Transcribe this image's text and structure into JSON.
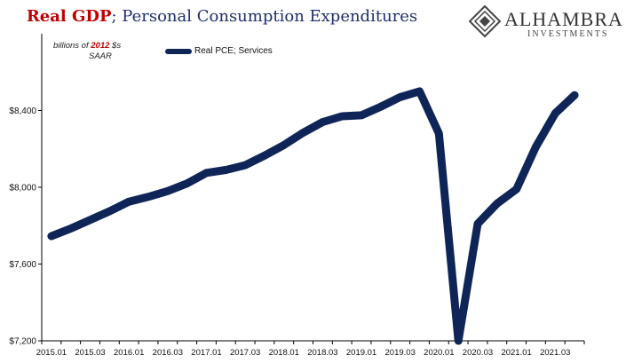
{
  "header": {
    "title_red": "Real GDP",
    "title_rest": "; Personal Consumption Expenditures"
  },
  "note": {
    "prefix": "billions of ",
    "year": "2012",
    "suffix": " $s",
    "line2": "SAAR"
  },
  "logo": {
    "name": "ALHAMBRA",
    "sub": "INVESTMENTS"
  },
  "colors": {
    "series": "#0f2557",
    "title_red": "#c00000",
    "title_blue": "#1f2d6b",
    "axis": "#000000"
  },
  "chart_data": {
    "type": "line",
    "ylim": [
      7200,
      8800
    ],
    "yticks": [
      7200,
      7600,
      8000,
      8400
    ],
    "ytick_labels": [
      "$7,200",
      "$7,600",
      "$8,000",
      "$8,400"
    ],
    "xtick_labels": [
      "2015.01",
      "2015.03",
      "2016.01",
      "2016.03",
      "2017.01",
      "2017.03",
      "2018.01",
      "2018.03",
      "2019.01",
      "2019.03",
      "2020.01",
      "2020.03",
      "2021.01",
      "2021.03"
    ],
    "grid": false,
    "legend_position": "top-left",
    "categories": [
      "2015.01",
      "2015.02",
      "2015.03",
      "2015.04",
      "2016.01",
      "2016.02",
      "2016.03",
      "2016.04",
      "2017.01",
      "2017.02",
      "2017.03",
      "2017.04",
      "2018.01",
      "2018.02",
      "2018.03",
      "2018.04",
      "2019.01",
      "2019.02",
      "2019.03",
      "2019.04",
      "2020.01",
      "2020.02",
      "2020.03",
      "2020.04",
      "2021.01",
      "2021.02",
      "2021.03",
      "2021.04"
    ],
    "series": [
      {
        "name": "Real PCE; Services",
        "values": [
          7745,
          7785,
          7830,
          7875,
          7925,
          7950,
          7980,
          8020,
          8075,
          8090,
          8115,
          8165,
          8220,
          8285,
          8340,
          8370,
          8375,
          8420,
          8470,
          8500,
          8280,
          7200,
          7810,
          7915,
          7990,
          8210,
          8385,
          8480
        ]
      }
    ]
  }
}
